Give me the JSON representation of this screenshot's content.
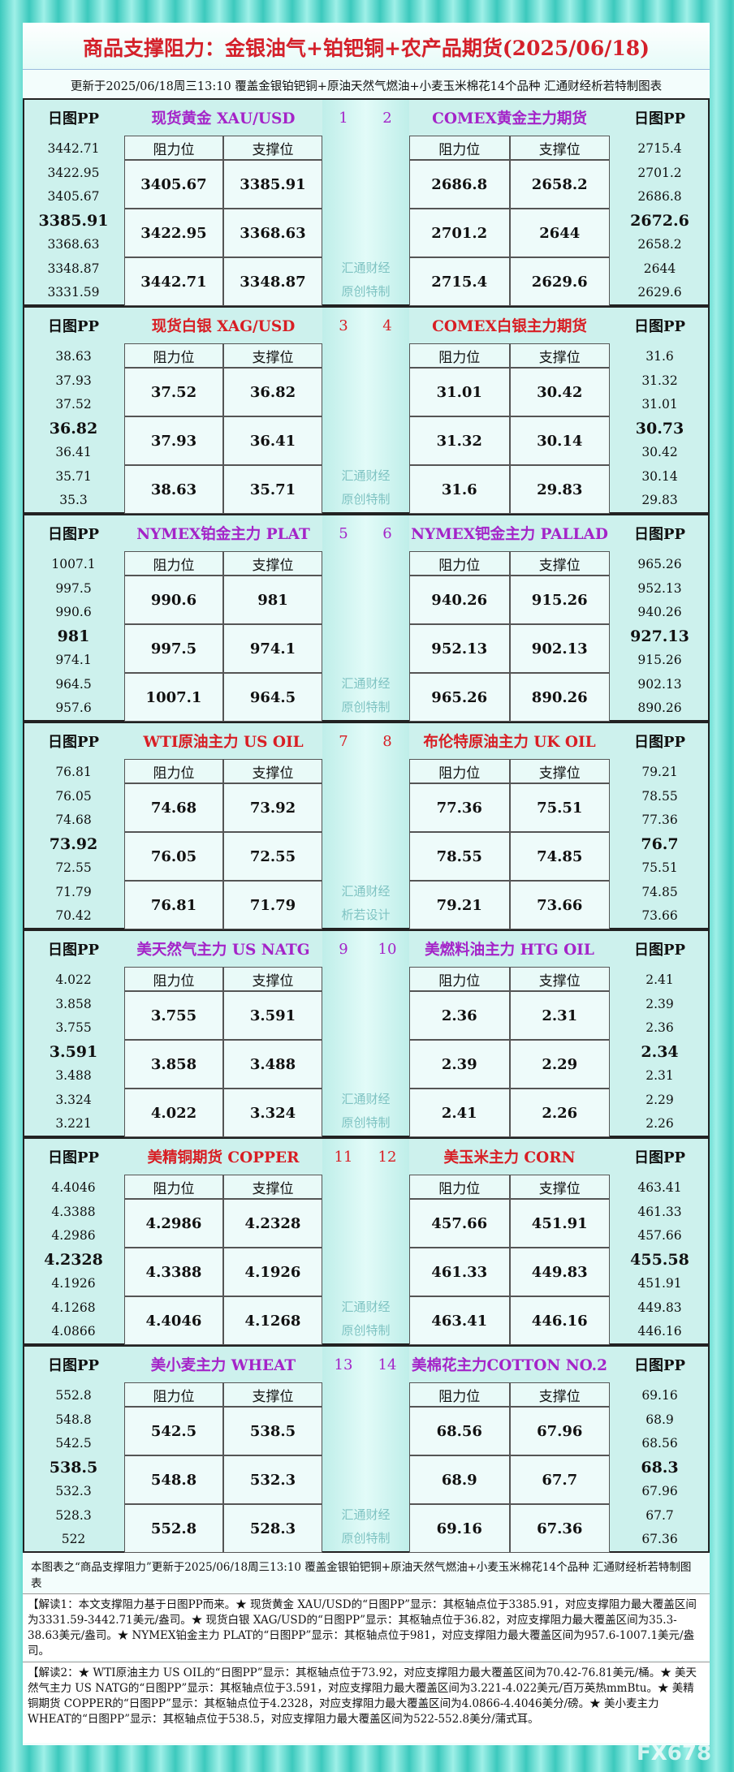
{
  "header": {
    "title": "商品支撑阻力：金银油气+铂钯铜+农产品期货(2025/06/18)",
    "subtitle": "更新于2025/06/18周三13:10 覆盖金银铂钯铜+原油天然气燃油+小麦玉米棉花14个品种 汇通财经析若特制图表"
  },
  "labels": {
    "pp_header": "日图PP",
    "resistance": "阻力位",
    "support": "支撑位"
  },
  "blocks": [
    {
      "left": {
        "name": "现货黄金 XAU/USD",
        "number": "1",
        "pp": [
          "3442.71",
          "3422.95",
          "3405.67",
          "3385.91",
          "3368.63",
          "3348.87",
          "3331.59"
        ],
        "table": [
          [
            "3405.67",
            "3385.91"
          ],
          [
            "3422.95",
            "3368.63"
          ],
          [
            "3442.71",
            "3348.87"
          ]
        ]
      },
      "right": {
        "name": "COMEX黄金主力期货",
        "number": "2",
        "pp": [
          "2715.4",
          "2701.2",
          "2686.8",
          "2672.6",
          "2658.2",
          "2644",
          "2629.6"
        ],
        "table": [
          [
            "2686.8",
            "2658.2"
          ],
          [
            "2701.2",
            "2644"
          ],
          [
            "2715.4",
            "2629.6"
          ]
        ]
      },
      "watermark": [
        "汇通财经",
        "原创特制"
      ]
    },
    {
      "left": {
        "name": "现货白银 XAG/USD",
        "number": "3",
        "pp": [
          "38.63",
          "37.93",
          "37.52",
          "36.82",
          "36.41",
          "35.71",
          "35.3"
        ],
        "table": [
          [
            "37.52",
            "36.82"
          ],
          [
            "37.93",
            "36.41"
          ],
          [
            "38.63",
            "35.71"
          ]
        ]
      },
      "right": {
        "name": "COMEX白银主力期货",
        "number": "4",
        "pp": [
          "31.6",
          "31.32",
          "31.01",
          "30.73",
          "30.42",
          "30.14",
          "29.83"
        ],
        "table": [
          [
            "31.01",
            "30.42"
          ],
          [
            "31.32",
            "30.14"
          ],
          [
            "31.6",
            "29.83"
          ]
        ]
      },
      "watermark": [
        "汇通财经",
        "原创特制"
      ]
    },
    {
      "left": {
        "name": "NYMEX铂金主力 PLAT",
        "number": "5",
        "pp": [
          "1007.1",
          "997.5",
          "990.6",
          "981",
          "974.1",
          "964.5",
          "957.6"
        ],
        "table": [
          [
            "990.6",
            "981"
          ],
          [
            "997.5",
            "974.1"
          ],
          [
            "1007.1",
            "964.5"
          ]
        ]
      },
      "right": {
        "name": "NYMEX钯金主力 PALLAD",
        "number": "6",
        "pp": [
          "965.26",
          "952.13",
          "940.26",
          "927.13",
          "915.26",
          "902.13",
          "890.26"
        ],
        "table": [
          [
            "940.26",
            "915.26"
          ],
          [
            "952.13",
            "902.13"
          ],
          [
            "965.26",
            "890.26"
          ]
        ]
      },
      "watermark": [
        "汇通财经",
        "原创特制"
      ]
    },
    {
      "left": {
        "name": "WTI原油主力 US OIL",
        "number": "7",
        "pp": [
          "76.81",
          "76.05",
          "74.68",
          "73.92",
          "72.55",
          "71.79",
          "70.42"
        ],
        "table": [
          [
            "74.68",
            "73.92"
          ],
          [
            "76.05",
            "72.55"
          ],
          [
            "76.81",
            "71.79"
          ]
        ]
      },
      "right": {
        "name": "布伦特原油主力 UK OIL",
        "number": "8",
        "pp": [
          "79.21",
          "78.55",
          "77.36",
          "76.7",
          "75.51",
          "74.85",
          "73.66"
        ],
        "table": [
          [
            "77.36",
            "75.51"
          ],
          [
            "78.55",
            "74.85"
          ],
          [
            "79.21",
            "73.66"
          ]
        ]
      },
      "watermark": [
        "汇通财经",
        "析若设计"
      ]
    },
    {
      "left": {
        "name": "美天然气主力 US NATG",
        "number": "9",
        "pp": [
          "4.022",
          "3.858",
          "3.755",
          "3.591",
          "3.488",
          "3.324",
          "3.221"
        ],
        "table": [
          [
            "3.755",
            "3.591"
          ],
          [
            "3.858",
            "3.488"
          ],
          [
            "4.022",
            "3.324"
          ]
        ]
      },
      "right": {
        "name": "美燃料油主力 HTG OIL",
        "number": "10",
        "pp": [
          "2.41",
          "2.39",
          "2.36",
          "2.34",
          "2.31",
          "2.29",
          "2.26"
        ],
        "table": [
          [
            "2.36",
            "2.31"
          ],
          [
            "2.39",
            "2.29"
          ],
          [
            "2.41",
            "2.26"
          ]
        ]
      },
      "watermark": [
        "汇通财经",
        "原创特制"
      ]
    },
    {
      "left": {
        "name": "美精铜期货 COPPER",
        "number": "11",
        "pp": [
          "4.4046",
          "4.3388",
          "4.2986",
          "4.2328",
          "4.1926",
          "4.1268",
          "4.0866"
        ],
        "table": [
          [
            "4.2986",
            "4.2328"
          ],
          [
            "4.3388",
            "4.1926"
          ],
          [
            "4.4046",
            "4.1268"
          ]
        ]
      },
      "right": {
        "name": "美玉米主力 CORN",
        "number": "12",
        "pp": [
          "463.41",
          "461.33",
          "457.66",
          "455.58",
          "451.91",
          "449.83",
          "446.16"
        ],
        "table": [
          [
            "457.66",
            "451.91"
          ],
          [
            "461.33",
            "449.83"
          ],
          [
            "463.41",
            "446.16"
          ]
        ]
      },
      "watermark": [
        "汇通财经",
        "原创特制"
      ]
    },
    {
      "left": {
        "name": "美小麦主力 WHEAT",
        "number": "13",
        "pp": [
          "552.8",
          "548.8",
          "542.5",
          "538.5",
          "532.3",
          "528.3",
          "522"
        ],
        "table": [
          [
            "542.5",
            "538.5"
          ],
          [
            "548.8",
            "532.3"
          ],
          [
            "552.8",
            "528.3"
          ]
        ]
      },
      "right": {
        "name": "美棉花主力COTTON NO.2",
        "number": "14",
        "pp": [
          "69.16",
          "68.9",
          "68.56",
          "68.3",
          "67.96",
          "67.7",
          "67.36"
        ],
        "table": [
          [
            "68.56",
            "67.96"
          ],
          [
            "68.9",
            "67.7"
          ],
          [
            "69.16",
            "67.36"
          ]
        ]
      },
      "watermark": [
        "汇通财经",
        "原创特制"
      ]
    }
  ],
  "footer": {
    "summary": "本图表之“商品支撑阻力”更新于2025/06/18周三13:10 覆盖金银铂钯铜+原油天然气燃油+小麦玉米棉花14个品种 汇通财经析若特制图表",
    "notes": [
      "【解读1：本文支撑阻力基于日图PP而来。★ 现货黄金 XAU/USD的“日图PP”显示：其枢轴点位于3385.91，对应支撑阻力最大覆盖区间为3331.59-3442.71美元/盎司。★ 现货白银 XAG/USD的“日图PP”显示：其枢轴点位于36.82，对应支撑阻力最大覆盖区间为35.3-38.63美元/盎司。★ NYMEX铂金主力 PLAT的“日图PP”显示：其枢轴点位于981，对应支撑阻力最大覆盖区间为957.6-1007.1美元/盎司。",
      "【解读2：★ WTI原油主力 US OIL的“日图PP”显示：其枢轴点位于73.92，对应支撑阻力最大覆盖区间为70.42-76.81美元/桶。★ 美天然气主力 US NATG的“日图PP”显示：其枢轴点位于3.591，对应支撑阻力最大覆盖区间为3.221-4.022美元/百万英热mmBtu。★ 美精铜期货 COPPER的“日图PP”显示：其枢轴点位于4.2328，对应支撑阻力最大覆盖区间为4.0866-4.4046美分/磅。★ 美小麦主力 WHEAT的“日图PP”显示：其枢轴点位于538.5，对应支撑阻力最大覆盖区间为522-552.8美分/蒲式耳。"
    ]
  },
  "watermark": "FX678"
}
